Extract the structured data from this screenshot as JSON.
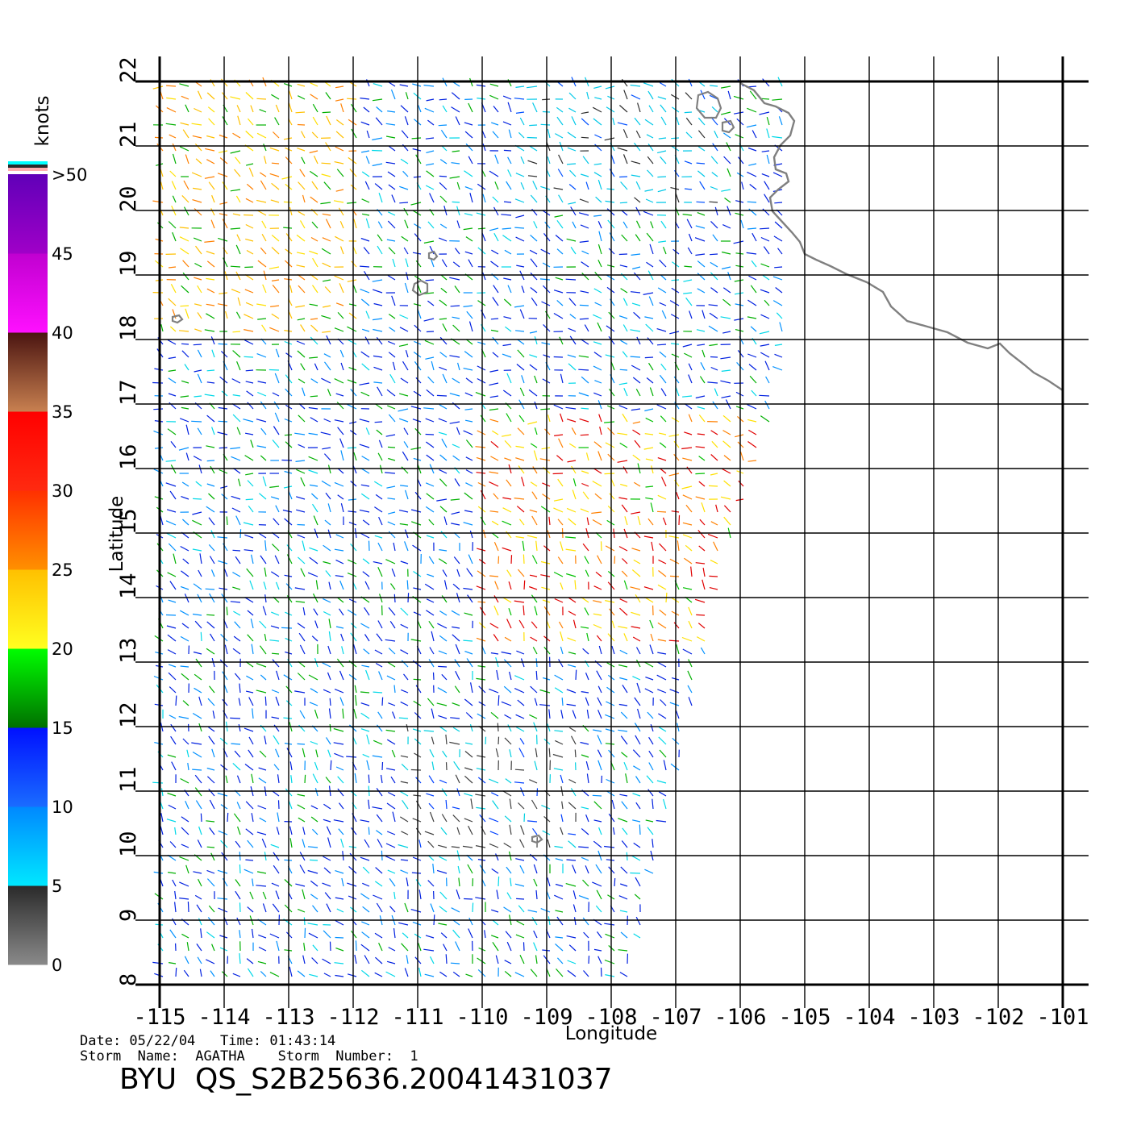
{
  "map": {
    "xlabel": "Longitude",
    "ylabel": "Latitude",
    "lon_ticks": [
      "-115",
      "-114",
      "-113",
      "-112",
      "-111",
      "-110",
      "-109",
      "-108",
      "-107",
      "-106",
      "-105",
      "-104",
      "-103",
      "-102",
      "-101"
    ],
    "lat_ticks": [
      "8",
      "9",
      "10",
      "11",
      "12",
      "13",
      "14",
      "15",
      "16",
      "17",
      "18",
      "19",
      "20",
      "21",
      "22"
    ],
    "lon_range": [
      -115,
      -101
    ],
    "lat_range": [
      8,
      22
    ],
    "grid": true,
    "coastline_color": "#808080"
  },
  "colorbar": {
    "unit": "knots",
    "labels": [
      "0",
      "5",
      "10",
      "15",
      "20",
      "25",
      "30",
      "35",
      "40",
      "45",
      ">50"
    ],
    "bands": [
      {
        "from": 0,
        "to": 5,
        "colors": [
          "#8a8a8a",
          "#2a2a2a"
        ]
      },
      {
        "from": 5,
        "to": 10,
        "colors": [
          "#00e8ff",
          "#0088ff"
        ]
      },
      {
        "from": 10,
        "to": 15,
        "colors": [
          "#1a6cff",
          "#0010ff"
        ]
      },
      {
        "from": 15,
        "to": 20,
        "colors": [
          "#007000",
          "#00ff00"
        ]
      },
      {
        "from": 20,
        "to": 25,
        "colors": [
          "#ffff20",
          "#ffc000"
        ]
      },
      {
        "from": 25,
        "to": 30,
        "colors": [
          "#ff9000",
          "#ff3000"
        ]
      },
      {
        "from": 30,
        "to": 35,
        "colors": [
          "#ff2a10",
          "#ff0000"
        ]
      },
      {
        "from": 35,
        "to": 40,
        "colors": [
          "#c88050",
          "#4a1410"
        ]
      },
      {
        "from": 40,
        "to": 45,
        "colors": [
          "#ff10ff",
          "#c000d0"
        ]
      },
      {
        "from": 45,
        "to": 50,
        "colors": [
          "#a000c8",
          "#6000b8"
        ]
      }
    ],
    "over_colors": [
      "#00ffff",
      "#2a2a2a",
      "#ffb0b0"
    ]
  },
  "info": {
    "date_line": "Date: 05/22/04   Time: 01:43:14",
    "storm_line": "Storm  Name:  AGATHA    Storm  Number:  1",
    "title": "BYU  QS_S2B25636.20041431037"
  }
}
